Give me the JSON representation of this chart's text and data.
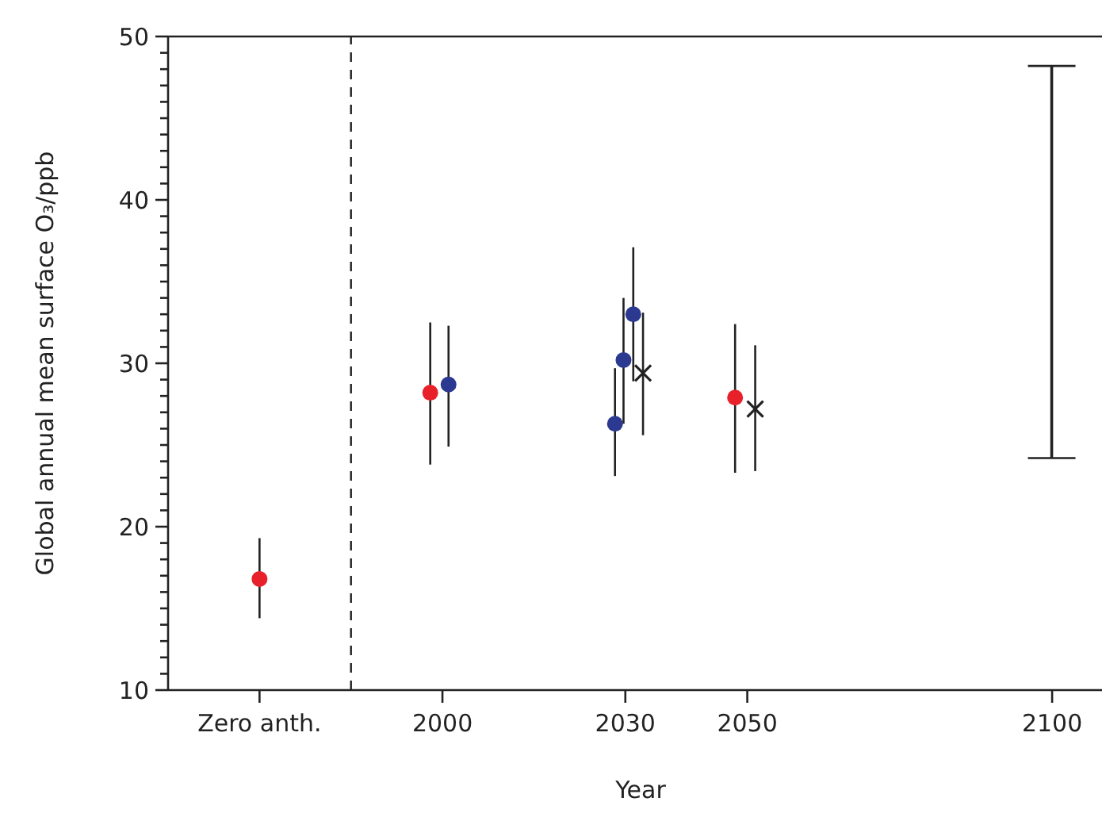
{
  "chart_data": {
    "type": "scatter",
    "xlabel": "Year",
    "ylabel": "Global annual mean surface O₃/ppb",
    "xlim": [
      1955,
      2110
    ],
    "xticks": [
      {
        "value": 1970,
        "label": "Zero anth."
      },
      2000,
      2030,
      2050,
      2100
    ],
    "ylim": [
      10,
      50
    ],
    "yticks": [
      10,
      {
        "value": 11,
        "label": null
      },
      {
        "value": 12,
        "label": null
      },
      {
        "value": 13,
        "label": null
      },
      {
        "value": 14,
        "label": null
      },
      {
        "value": 15,
        "label": null
      },
      {
        "value": 16,
        "label": null
      },
      {
        "value": 17,
        "label": null
      },
      {
        "value": 18,
        "label": null
      },
      {
        "value": 19,
        "label": null
      },
      20,
      {
        "value": 21,
        "label": null
      },
      {
        "value": 22,
        "label": null
      },
      {
        "value": 23,
        "label": null
      },
      {
        "value": 24,
        "label": null
      },
      {
        "value": 25,
        "label": null
      },
      {
        "value": 26,
        "label": null
      },
      {
        "value": 27,
        "label": null
      },
      {
        "value": 28,
        "label": null
      },
      {
        "value": 29,
        "label": null
      },
      30,
      {
        "value": 31,
        "label": null
      },
      {
        "value": 32,
        "label": null
      },
      {
        "value": 33,
        "label": null
      },
      {
        "value": 34,
        "label": null
      },
      {
        "value": 35,
        "label": null
      },
      {
        "value": 36,
        "label": null
      },
      {
        "value": 37,
        "label": null
      },
      {
        "value": 38,
        "label": null
      },
      {
        "value": 39,
        "label": null
      },
      40,
      {
        "value": 41,
        "label": null
      },
      {
        "value": 42,
        "label": null
      },
      {
        "value": 43,
        "label": null
      },
      {
        "value": 44,
        "label": null
      },
      {
        "value": 45,
        "label": null
      },
      {
        "value": 46,
        "label": null
      },
      {
        "value": 47,
        "label": null
      },
      {
        "value": 48,
        "label": null
      },
      {
        "value": 49,
        "label": null
      },
      50
    ],
    "grid": false,
    "ref_lines": [
      {
        "axis": "x",
        "value": 1985,
        "color": "#222222",
        "line_style": "dashed"
      }
    ],
    "series": [
      {
        "color": "#e8202a",
        "marker": "circle",
        "x": [
          1970,
          1998,
          2048
        ],
        "values": [
          16.8,
          28.2,
          27.9
        ],
        "errors": [
          [
            14.4,
            19.3
          ],
          [
            23.8,
            32.5
          ],
          [
            23.3,
            32.4
          ]
        ]
      },
      {
        "color": "#2b3990",
        "marker": "circle",
        "x": [
          2001,
          2028.3,
          2029.7,
          2031.3
        ],
        "values": [
          28.7,
          26.3,
          30.2,
          33.0
        ],
        "errors": [
          [
            24.9,
            32.3
          ],
          [
            23.1,
            29.7
          ],
          [
            26.3,
            34.0
          ],
          [
            28.9,
            37.1
          ]
        ]
      },
      {
        "color": "#222222",
        "marker": "cross",
        "x": [
          2032.9,
          2051.3
        ],
        "values": [
          29.4,
          27.2
        ],
        "errors": [
          [
            25.6,
            33.1
          ],
          [
            23.4,
            31.1
          ]
        ]
      },
      {
        "type": "bar",
        "color": "#222222",
        "x": [
          2100
        ],
        "base": [
          24.2
        ],
        "values": [
          24.0
        ]
      }
    ]
  }
}
